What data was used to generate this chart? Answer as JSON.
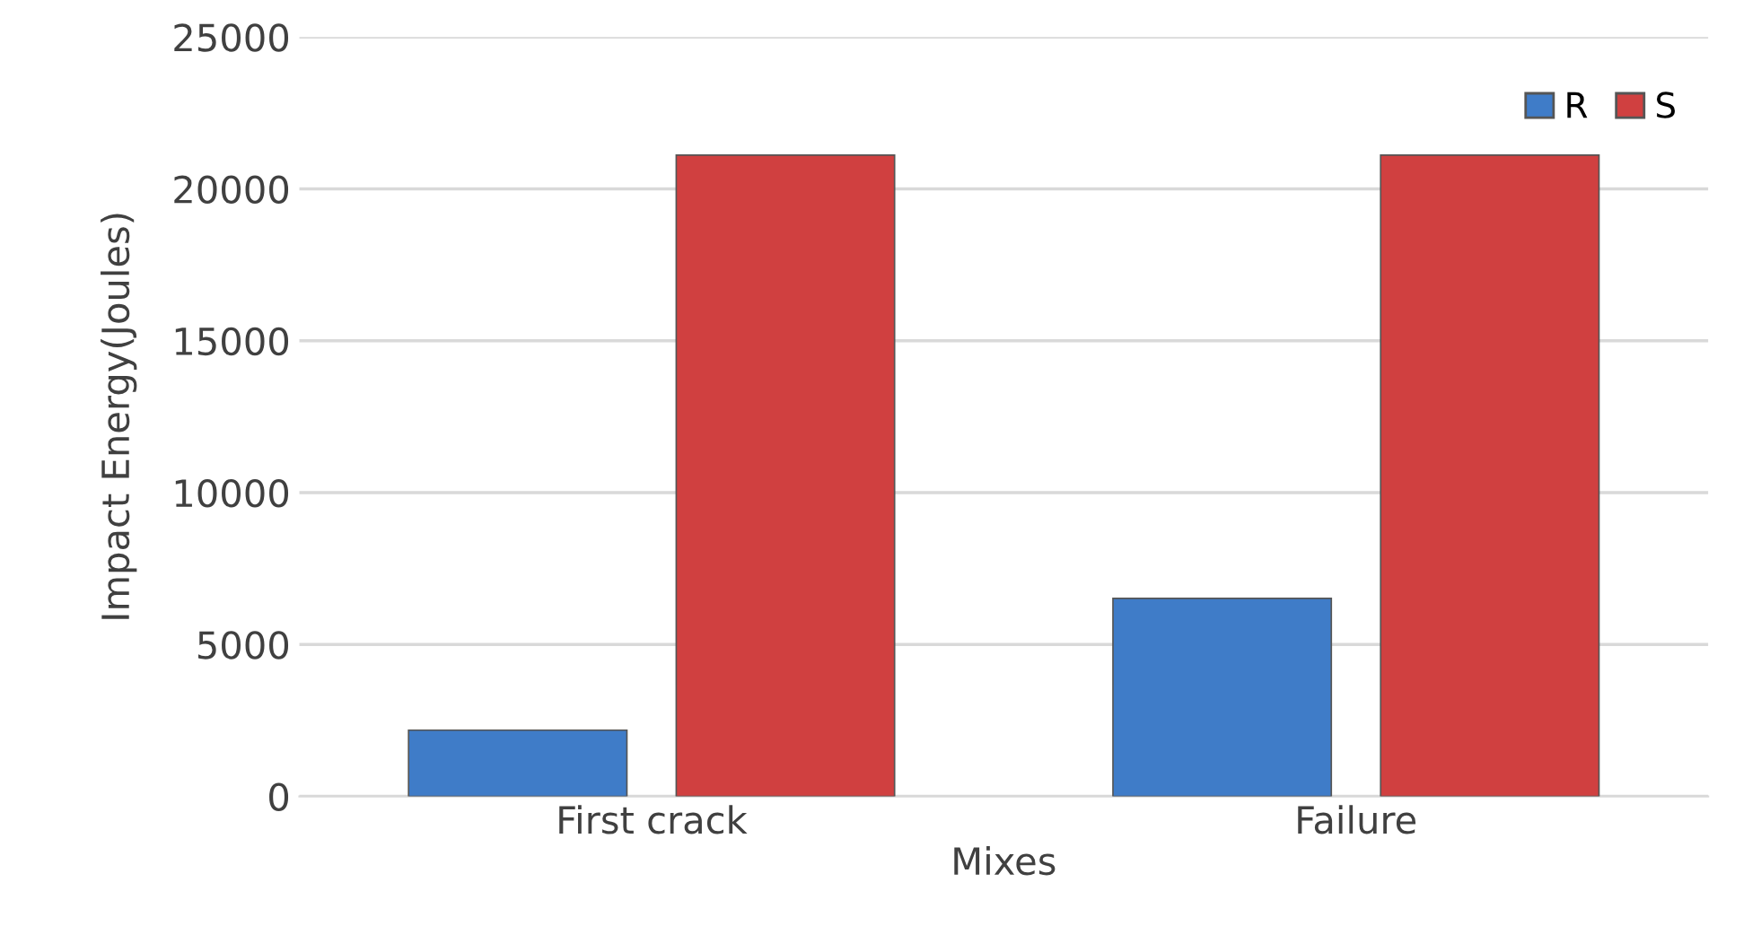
{
  "chart_data": {
    "type": "bar",
    "xlabel": "Mixes",
    "ylabel": "Impact Energy(Joules)",
    "categories": [
      "First crack",
      "Failure"
    ],
    "series": [
      {
        "name": "R",
        "color": "#3f7cc8",
        "values": [
          2180,
          6520
        ]
      },
      {
        "name": "S",
        "color": "#d04040",
        "values": [
          21110,
          21110
        ]
      }
    ],
    "ylim": [
      0,
      25000
    ],
    "yticks": [
      0,
      5000,
      10000,
      15000,
      20000,
      25000
    ],
    "grid": "y",
    "legend": "top right"
  }
}
